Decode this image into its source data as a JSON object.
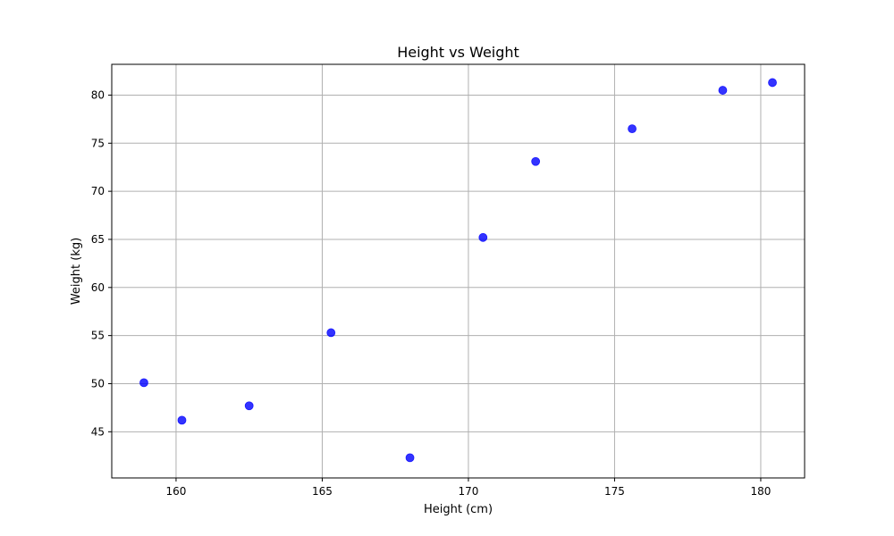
{
  "chart_data": {
    "type": "scatter",
    "title": "Height vs Weight",
    "xlabel": "Height (cm)",
    "ylabel": "Weight (kg)",
    "xlim": [
      157.8,
      181.5
    ],
    "ylim": [
      40.2,
      83.2
    ],
    "xticks": [
      160,
      165,
      170,
      175,
      180
    ],
    "yticks": [
      45,
      50,
      55,
      60,
      65,
      70,
      75,
      80
    ],
    "grid": true,
    "marker_color": "#0000ff",
    "marker_opacity": 0.8,
    "points": [
      {
        "x": 158.9,
        "y": 50.1
      },
      {
        "x": 160.2,
        "y": 46.2
      },
      {
        "x": 162.5,
        "y": 47.7
      },
      {
        "x": 165.3,
        "y": 55.3
      },
      {
        "x": 168.0,
        "y": 42.3
      },
      {
        "x": 170.5,
        "y": 65.2
      },
      {
        "x": 172.3,
        "y": 73.1
      },
      {
        "x": 175.6,
        "y": 76.5
      },
      {
        "x": 178.7,
        "y": 80.5
      },
      {
        "x": 180.4,
        "y": 81.3
      }
    ]
  }
}
